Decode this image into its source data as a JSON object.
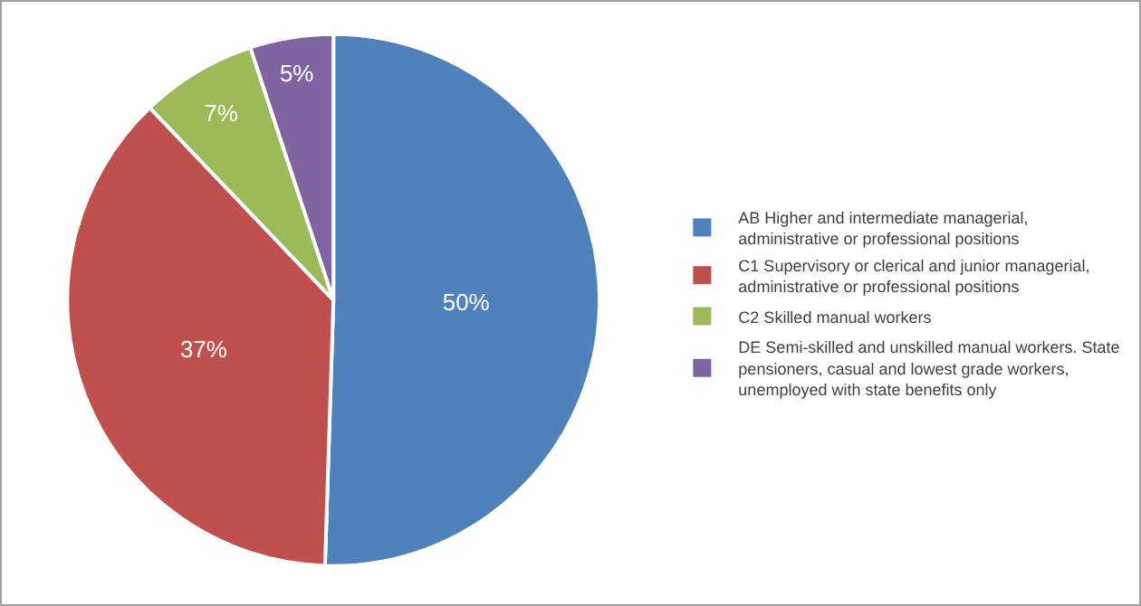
{
  "chart_data": {
    "type": "pie",
    "categories": [
      "AB Higher and intermediate managerial, administrative or professional positions",
      "C1 Supervisory or clerical and junior managerial, administrative or professional positions",
      "C2 Skilled manual workers",
      "DE Semi-skilled and unskilled manual workers. State pensioners, casual and lowest grade workers, unemployed with state benefits only"
    ],
    "values": [
      50,
      37,
      7,
      5
    ],
    "value_labels": [
      "50%",
      "37%",
      "7%",
      "5%"
    ],
    "colors": [
      "#4f81bd",
      "#c0504d",
      "#9bbb59",
      "#8064a2"
    ],
    "legend": "right"
  }
}
